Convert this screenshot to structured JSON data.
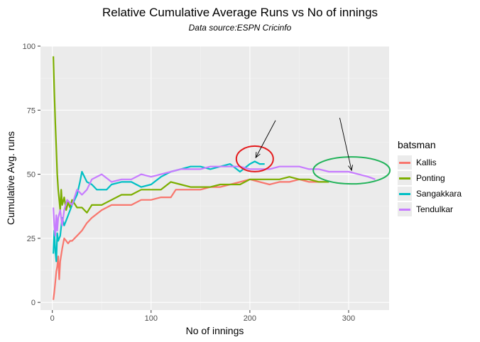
{
  "colors": {
    "panel": "#ebebeb",
    "grid_major": "#ffffff",
    "grid_minor": "#f4f4f4",
    "annotation_red": "#e41a1c",
    "annotation_green": "#22b35a"
  },
  "chart_data": {
    "type": "line",
    "title": "Relative Cumulative Average Runs vs No of innings",
    "subtitle": "Data source:ESPN Cricinfo",
    "xlabel": "No of innings",
    "ylabel": "Cumulative Avg. runs",
    "xlim": [
      -12,
      341
    ],
    "ylim": [
      -3,
      100
    ],
    "xticks": [
      0,
      100,
      200,
      300
    ],
    "yticks": [
      0,
      25,
      50,
      75,
      100
    ],
    "xtick_labels": [
      "0",
      "100",
      "200",
      "300"
    ],
    "ytick_labels": [
      "0",
      "25",
      "50",
      "75",
      "100"
    ],
    "legend_title": "batsman",
    "series": [
      {
        "name": "Kallis",
        "color": "#f8766d",
        "x": [
          1,
          2,
          3,
          4,
          5,
          6,
          7,
          8,
          10,
          12,
          14,
          16,
          18,
          20,
          25,
          30,
          35,
          40,
          50,
          60,
          70,
          80,
          90,
          100,
          110,
          120,
          125,
          130,
          140,
          150,
          160,
          170,
          180,
          190,
          200,
          210,
          220,
          230,
          240,
          250,
          260,
          270,
          280
        ],
        "y": [
          1,
          4,
          8,
          12,
          14,
          18,
          9,
          16,
          21,
          25,
          24,
          23,
          24,
          24,
          26,
          28,
          31,
          33,
          36,
          38,
          38,
          38,
          40,
          40,
          41,
          41,
          44,
          44,
          44,
          44,
          45,
          45,
          46,
          47,
          48,
          47,
          46,
          47,
          47,
          48,
          47,
          47,
          47
        ]
      },
      {
        "name": "Ponting",
        "color": "#7cae00",
        "x": [
          1,
          2,
          3,
          4,
          5,
          6,
          7,
          8,
          9,
          10,
          12,
          14,
          16,
          18,
          20,
          25,
          30,
          35,
          40,
          50,
          60,
          70,
          80,
          90,
          100,
          110,
          120,
          130,
          140,
          150,
          160,
          170,
          180,
          190,
          200,
          210,
          220,
          230,
          240,
          250,
          260,
          270,
          280
        ],
        "y": [
          96,
          82,
          70,
          60,
          50,
          44,
          40,
          36,
          44,
          38,
          41,
          36,
          39,
          37,
          40,
          37,
          37,
          35,
          38,
          38,
          40,
          42,
          42,
          44,
          44,
          44,
          47,
          46,
          45,
          45,
          45,
          46,
          46,
          46,
          48,
          48,
          48,
          48,
          49,
          48,
          48,
          47,
          47
        ]
      },
      {
        "name": "Sangakkara",
        "color": "#00bfc4",
        "x": [
          1,
          2,
          3,
          4,
          5,
          6,
          8,
          10,
          12,
          15,
          20,
          25,
          28,
          30,
          35,
          40,
          45,
          50,
          55,
          60,
          70,
          80,
          90,
          100,
          110,
          120,
          130,
          140,
          150,
          160,
          170,
          180,
          190,
          200,
          205,
          210,
          215
        ],
        "y": [
          19,
          28,
          20,
          16,
          27,
          24,
          26,
          33,
          30,
          33,
          38,
          42,
          47,
          51,
          47,
          46,
          44,
          44,
          44,
          46,
          47,
          47,
          45,
          46,
          49,
          51,
          52,
          53,
          53,
          52,
          53,
          54,
          51,
          54,
          55,
          54,
          54
        ]
      },
      {
        "name": "Tendulkar",
        "color": "#c77cff",
        "x": [
          1,
          2,
          3,
          4,
          5,
          6,
          8,
          10,
          12,
          15,
          20,
          25,
          30,
          35,
          40,
          50,
          60,
          70,
          80,
          90,
          100,
          110,
          120,
          130,
          140,
          150,
          160,
          170,
          180,
          190,
          200,
          210,
          220,
          230,
          240,
          250,
          260,
          270,
          280,
          290,
          300,
          310,
          320,
          327
        ],
        "y": [
          37,
          30,
          26,
          34,
          28,
          33,
          36,
          30,
          36,
          40,
          38,
          44,
          42,
          44,
          48,
          50,
          47,
          48,
          48,
          50,
          49,
          50,
          51,
          52,
          52,
          52,
          53,
          53,
          53,
          53,
          52,
          52,
          52,
          53,
          53,
          53,
          52,
          52,
          51,
          51,
          51,
          50,
          49,
          48
        ]
      }
    ]
  }
}
